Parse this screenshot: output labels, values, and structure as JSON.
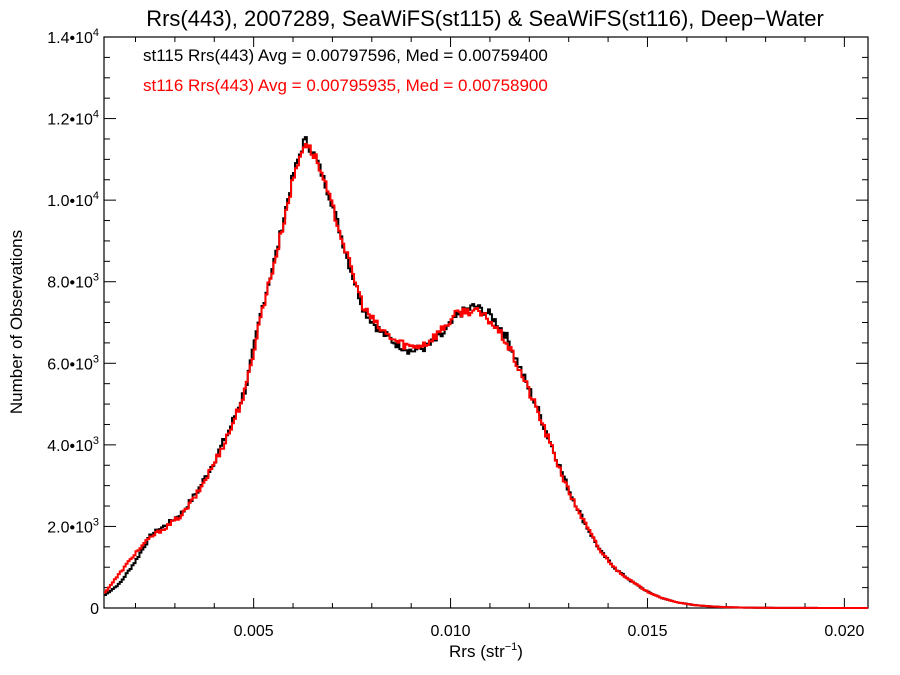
{
  "chart_data": {
    "type": "line",
    "title": "Rrs(443), 2007289, SeaWiFS(st115) & SeaWiFS(st116), Deep−Water",
    "xlabel": "Rrs (str",
    "xlabel_sup": "−1",
    "xlabel_end": ")",
    "ylabel": "Number of Observations",
    "xlim": [
      0.0012,
      0.0206
    ],
    "ylim": [
      0,
      14000
    ],
    "x_ticks": [
      {
        "value": 0.005,
        "label": "0.005"
      },
      {
        "value": 0.01,
        "label": "0.010"
      },
      {
        "value": 0.015,
        "label": "0.015"
      },
      {
        "value": 0.02,
        "label": "0.020"
      }
    ],
    "y_ticks": [
      {
        "value": 0,
        "mantissa": "0",
        "exp": ""
      },
      {
        "value": 2000,
        "mantissa": "2.0•10",
        "exp": "3"
      },
      {
        "value": 4000,
        "mantissa": "4.0•10",
        "exp": "3"
      },
      {
        "value": 6000,
        "mantissa": "6.0•10",
        "exp": "3"
      },
      {
        "value": 8000,
        "mantissa": "8.0•10",
        "exp": "3"
      },
      {
        "value": 10000,
        "mantissa": "1.0•10",
        "exp": "4"
      },
      {
        "value": 12000,
        "mantissa": "1.2•10",
        "exp": "4"
      },
      {
        "value": 14000,
        "mantissa": "1.4•10",
        "exp": "4"
      }
    ],
    "legend": [
      {
        "text": "st115 Rrs(443) Avg = 0.00797596, Med = 0.00759400",
        "color": "#000000"
      },
      {
        "text": "st116 Rrs(443) Avg = 0.00795935, Med = 0.00758900",
        "color": "#ff0000"
      }
    ],
    "series": [
      {
        "color": "#000000",
        "x": [
          0.0012,
          0.0016,
          0.002,
          0.0024,
          0.0028,
          0.0032,
          0.0036,
          0.004,
          0.0044,
          0.0048,
          0.0052,
          0.0056,
          0.006,
          0.0063,
          0.0066,
          0.007,
          0.0074,
          0.0078,
          0.0082,
          0.0086,
          0.009,
          0.0094,
          0.0098,
          0.0102,
          0.0106,
          0.011,
          0.0114,
          0.0118,
          0.0122,
          0.0126,
          0.013,
          0.0134,
          0.0138,
          0.0142,
          0.0146,
          0.015,
          0.0154,
          0.0158,
          0.0162,
          0.0166,
          0.017,
          0.0175,
          0.018,
          0.019,
          0.0206
        ],
        "y": [
          300,
          600,
          1150,
          1800,
          2050,
          2350,
          2900,
          3600,
          4400,
          5400,
          7300,
          8800,
          10600,
          11500,
          11000,
          9900,
          8500,
          7300,
          6800,
          6500,
          6300,
          6400,
          6700,
          7200,
          7400,
          7200,
          6700,
          5800,
          4900,
          3900,
          2900,
          2100,
          1400,
          950,
          650,
          400,
          230,
          130,
          70,
          40,
          20,
          10,
          5,
          2,
          0
        ]
      },
      {
        "color": "#ff0000",
        "x": [
          0.0012,
          0.0016,
          0.002,
          0.0024,
          0.0028,
          0.0032,
          0.0036,
          0.004,
          0.0044,
          0.0048,
          0.0052,
          0.0056,
          0.006,
          0.0063,
          0.0066,
          0.007,
          0.0074,
          0.0078,
          0.0082,
          0.0086,
          0.009,
          0.0094,
          0.0098,
          0.0102,
          0.0106,
          0.011,
          0.0114,
          0.0118,
          0.0122,
          0.0126,
          0.013,
          0.0134,
          0.0138,
          0.0142,
          0.0146,
          0.015,
          0.0154,
          0.0158,
          0.0162,
          0.0166,
          0.017,
          0.0175,
          0.018,
          0.019,
          0.0206
        ],
        "y": [
          350,
          850,
          1350,
          1750,
          2000,
          2300,
          2850,
          3550,
          4350,
          5350,
          7250,
          8750,
          10500,
          11450,
          11000,
          9850,
          8550,
          7350,
          6850,
          6550,
          6400,
          6500,
          6850,
          7250,
          7300,
          7050,
          6550,
          5750,
          4850,
          3850,
          2850,
          2100,
          1400,
          950,
          650,
          400,
          230,
          130,
          70,
          40,
          20,
          10,
          5,
          2,
          0
        ]
      }
    ]
  }
}
